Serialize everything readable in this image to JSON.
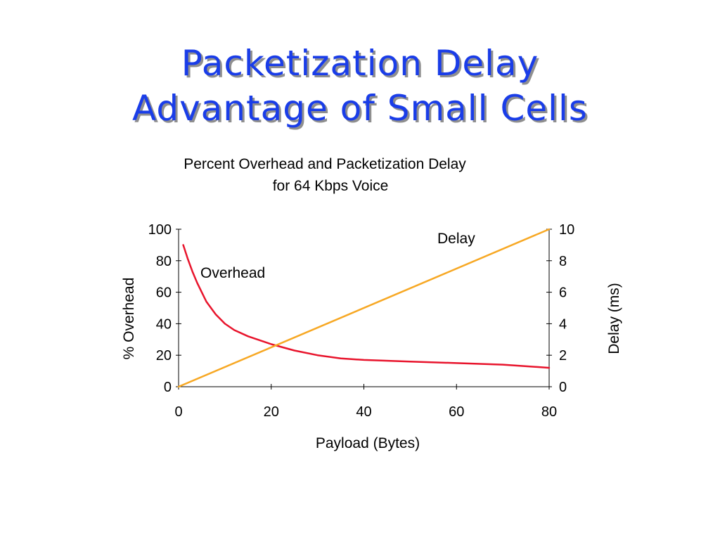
{
  "slide": {
    "title_line1": "Packetization Delay",
    "title_line2": "Advantage of Small Cells"
  },
  "chart_data": {
    "type": "line",
    "title_line1": "Percent Overhead and Packetization Delay",
    "title_line2": "for 64 Kbps Voice",
    "xlabel": "Payload (Bytes)",
    "ylabel_left": "% Overhead",
    "ylabel_right": "Delay (ms)",
    "xlim": [
      0,
      80
    ],
    "ylim_left": [
      0,
      100
    ],
    "ylim_right": [
      0,
      10
    ],
    "x_ticks": [
      "0",
      "20",
      "40",
      "60",
      "80"
    ],
    "y_left_ticks": [
      "0",
      "20",
      "40",
      "60",
      "80",
      "100"
    ],
    "y_right_ticks": [
      "0",
      "2",
      "4",
      "6",
      "8",
      "10"
    ],
    "grid": false,
    "series": [
      {
        "name": "Overhead",
        "axis": "left",
        "color": "#e8142c",
        "x": [
          1,
          2,
          3,
          4,
          5,
          6,
          8,
          10,
          12,
          15,
          20,
          25,
          30,
          35,
          40,
          50,
          60,
          70,
          80
        ],
        "y": [
          90,
          81,
          73,
          66,
          60,
          54,
          46,
          40,
          36,
          32,
          27,
          23,
          20,
          18,
          17,
          16,
          15,
          14,
          12
        ]
      },
      {
        "name": "Delay",
        "axis": "right",
        "color": "#f7a824",
        "x": [
          0,
          80
        ],
        "y": [
          0,
          10
        ]
      }
    ]
  }
}
